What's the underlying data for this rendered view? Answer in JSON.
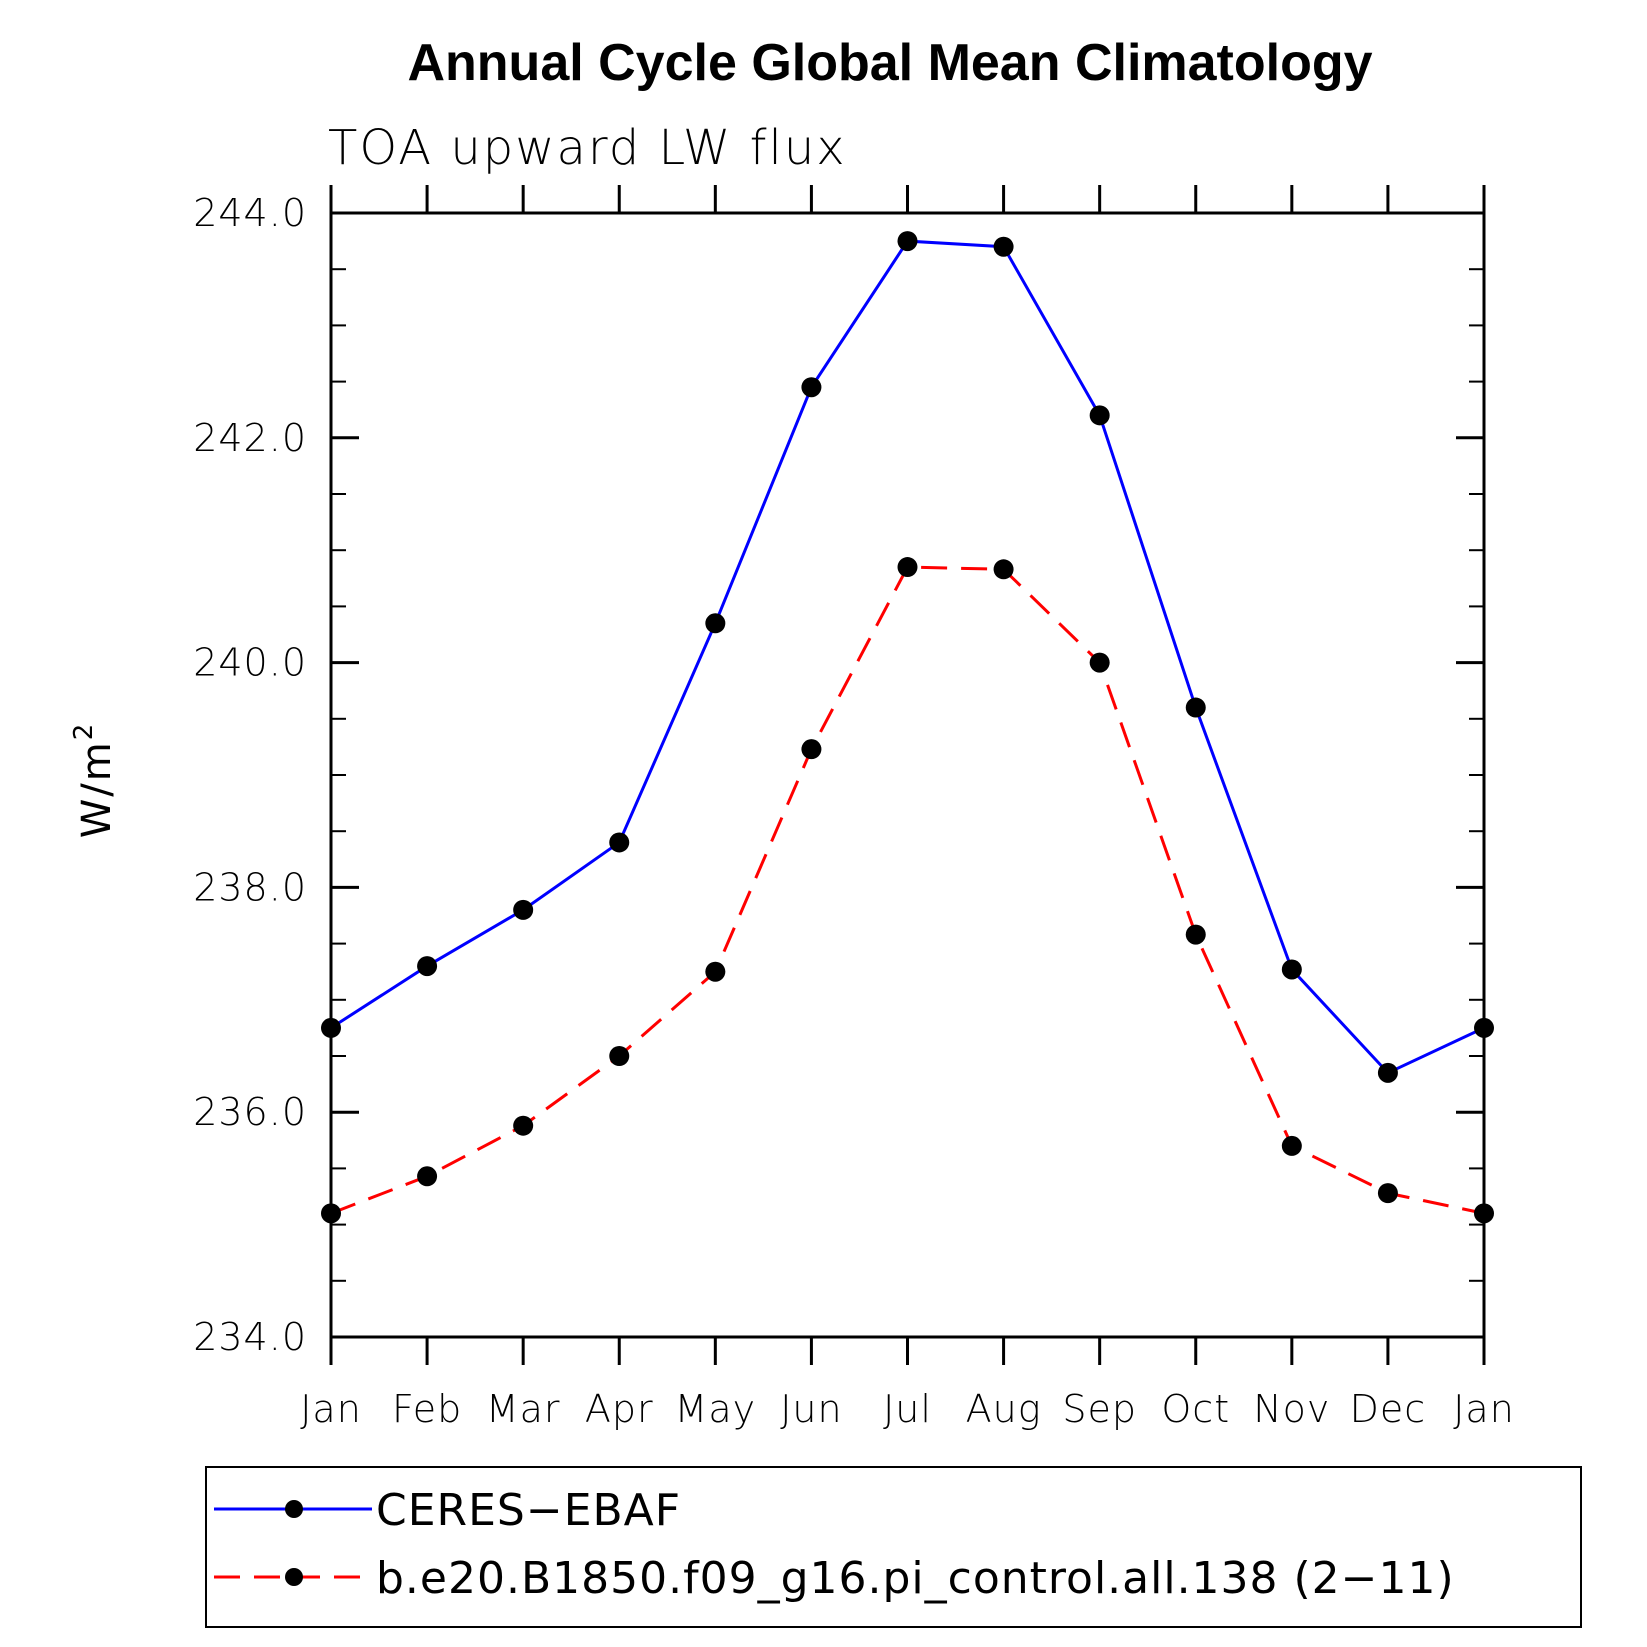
{
  "chart_data": {
    "type": "line",
    "title": "Annual Cycle Global Mean Climatology",
    "subtitle": "TOA upward LW flux",
    "ylabel": "W/m",
    "ylabel_sup": "2",
    "categories": [
      "Jan",
      "Feb",
      "Mar",
      "Apr",
      "May",
      "Jun",
      "Jul",
      "Aug",
      "Sep",
      "Oct",
      "Nov",
      "Dec",
      "Jan"
    ],
    "ylim": [
      234.0,
      244.0
    ],
    "yticks": [
      "234.0",
      "236.0",
      "238.0",
      "240.0",
      "242.0",
      "244.0"
    ],
    "series": [
      {
        "name": "CERES−EBAF",
        "color": "#0000ff",
        "style": "solid",
        "marker": "filled-circle",
        "values": [
          236.75,
          237.3,
          237.8,
          238.4,
          240.35,
          242.45,
          243.75,
          243.7,
          242.2,
          239.6,
          237.27,
          236.35,
          236.75
        ]
      },
      {
        "name": "b.e20.B1850.f09_g16.pi_control.all.138 (2−11)",
        "color": "#ff0000",
        "style": "dashed",
        "marker": "filled-circle",
        "values": [
          235.1,
          235.43,
          235.88,
          236.5,
          237.25,
          239.23,
          240.85,
          240.83,
          240.0,
          237.58,
          235.7,
          235.28,
          235.1
        ]
      }
    ],
    "grid": false,
    "legend_position": "bottom"
  }
}
